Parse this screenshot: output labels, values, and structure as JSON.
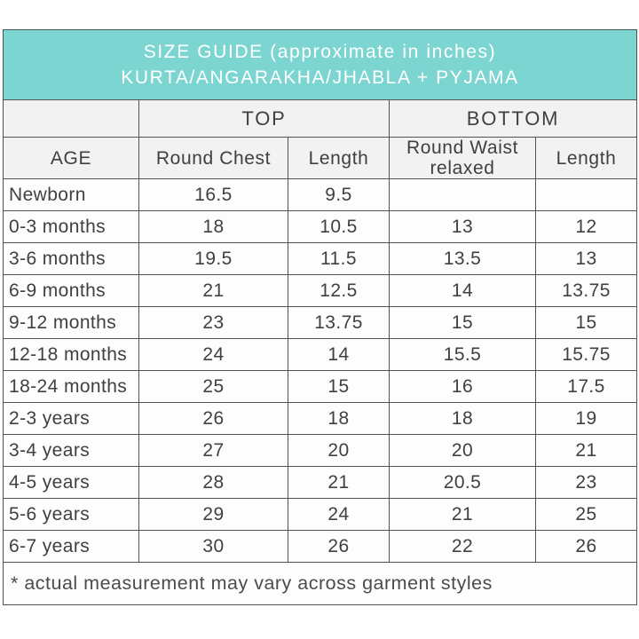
{
  "header": {
    "title_line1": "SIZE GUIDE (approximate in inches)",
    "title_line2": "KURTA/ANGARAKHA/JHABLA + PYJAMA",
    "background_color": "#7cd5d0",
    "text_color": "#ffffff"
  },
  "table": {
    "group_headers": [
      {
        "label": "",
        "span": 1
      },
      {
        "label": "TOP",
        "span": 2
      },
      {
        "label": "BOTTOM",
        "span": 2
      }
    ],
    "column_headers": [
      "AGE",
      "Round Chest",
      "Length",
      "Round Waist relaxed",
      "Length"
    ],
    "rows": [
      {
        "age": "Newborn",
        "values": [
          "16.5",
          "9.5",
          "",
          ""
        ]
      },
      {
        "age": "0-3 months",
        "values": [
          "18",
          "10.5",
          "13",
          "12"
        ]
      },
      {
        "age": "3-6 months",
        "values": [
          "19.5",
          "11.5",
          "13.5",
          "13"
        ]
      },
      {
        "age": "6-9 months",
        "values": [
          "21",
          "12.5",
          "14",
          "13.75"
        ]
      },
      {
        "age": "9-12 months",
        "values": [
          "23",
          "13.75",
          "15",
          "15"
        ]
      },
      {
        "age": "12-18 months",
        "values": [
          "24",
          "14",
          "15.5",
          "15.75"
        ]
      },
      {
        "age": "18-24 months",
        "values": [
          "25",
          "15",
          "16",
          "17.5"
        ]
      },
      {
        "age": "2-3 years",
        "values": [
          "26",
          "18",
          "18",
          "19"
        ]
      },
      {
        "age": "3-4 years",
        "values": [
          "27",
          "20",
          "20",
          "21"
        ]
      },
      {
        "age": "4-5 years",
        "values": [
          "28",
          "21",
          "20.5",
          "23"
        ]
      },
      {
        "age": "5-6 years",
        "values": [
          "29",
          "24",
          "21",
          "25"
        ]
      },
      {
        "age": "6-7 years",
        "values": [
          "30",
          "26",
          "22",
          "26"
        ]
      }
    ],
    "footnote": "* actual measurement may vary across garment styles"
  },
  "colors": {
    "accent_teal": "#7cd5d0",
    "border": "#4d5456",
    "header_row_bg": "#f2f2f2",
    "text": "#3e4142"
  }
}
